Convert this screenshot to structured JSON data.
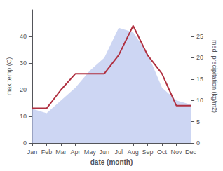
{
  "chart_data": {
    "type": "line",
    "xlabel": "date (month)",
    "ylabel": "max temp (C)",
    "y2label": "med. precipitation (kg/m2)",
    "categories": [
      "Jan",
      "Feb",
      "Mar",
      "Apr",
      "May",
      "Jun",
      "Jul",
      "Aug",
      "Sep",
      "Oct",
      "Nov",
      "Dec"
    ],
    "series": [
      {
        "type": "area",
        "axis": "y2",
        "color": "#b8c4ee",
        "values": [
          8,
          7,
          10,
          13,
          17,
          20,
          27,
          26,
          21,
          13,
          10,
          9
        ]
      },
      {
        "type": "line",
        "color": "#b03040",
        "values": [
          13,
          13,
          20,
          26,
          26,
          26,
          33,
          44,
          33,
          26,
          14,
          14
        ]
      }
    ],
    "ylim": [
      0,
      50
    ],
    "yticks": [
      0,
      10,
      20,
      30,
      40
    ],
    "y2lim": [
      0,
      31.25
    ],
    "y2ticks": [
      0,
      5,
      10,
      15,
      20,
      25
    ],
    "grid": false
  }
}
